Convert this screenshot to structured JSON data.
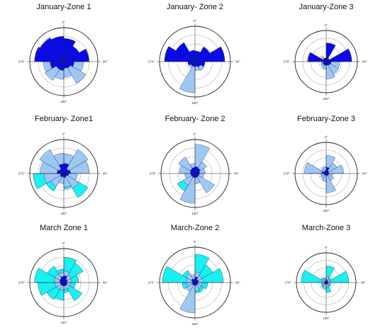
{
  "colors": {
    "dark": "#0a0ae6",
    "light": "#9ec8f2",
    "cyan": "#19f0f0",
    "stroke": "#1a1a6a",
    "ring": "#777777",
    "axis": "#222222"
  },
  "direction_labels": [
    "0°",
    "90°",
    "180°",
    "270°"
  ],
  "chart_data": [
    {
      "type": "polar-rose",
      "title": "January-Zone 1",
      "sectors": 12,
      "rmax": 1.0,
      "series": [
        {
          "color_key": "light",
          "values": [
            0.68,
            0.52,
            0.68,
            0.58,
            0.74,
            0.46,
            0.52,
            0.64,
            0.6,
            0.8,
            0.82,
            0.74
          ]
        },
        {
          "color_key": "dark",
          "values": [
            0.68,
            0.52,
            0.74,
            0.3,
            0.22,
            0.2,
            0.26,
            0.26,
            0.4,
            0.86,
            0.8,
            0.74
          ]
        }
      ]
    },
    {
      "type": "polar-rose",
      "title": "January- Zone 2",
      "sectors": 12,
      "rmax": 1.0,
      "series": [
        {
          "color_key": "light",
          "values": [
            0.3,
            0.3,
            0.36,
            0.28,
            0.3,
            0.26,
            0.88,
            0.2,
            0.2,
            0.46,
            0.2,
            0.24
          ]
        },
        {
          "color_key": "dark",
          "values": [
            0.3,
            0.48,
            0.84,
            0.28,
            0.18,
            0.14,
            0.14,
            0.14,
            0.2,
            0.86,
            0.62,
            0.32
          ]
        }
      ]
    },
    {
      "type": "polar-rose",
      "title": "January-Zone 3",
      "sectors": 12,
      "rmax": 1.0,
      "series": [
        {
          "color_key": "light",
          "values": [
            0.12,
            0.12,
            0.4,
            0.44,
            0.46,
            0.56,
            0.24,
            0.2,
            0.16,
            0.6,
            0.2,
            0.12
          ]
        },
        {
          "color_key": "dark",
          "values": [
            0.6,
            0.12,
            0.82,
            0.16,
            0.14,
            0.12,
            0.12,
            0.12,
            0.1,
            0.58,
            0.12,
            0.12
          ]
        }
      ]
    },
    {
      "type": "polar-rose",
      "title": "February- Zone1",
      "sectors": 12,
      "rmax": 1.0,
      "series": [
        {
          "color_key": "cyan",
          "values": [
            0.1,
            0.1,
            0.1,
            0.3,
            0.82,
            0.46,
            0.1,
            0.6,
            0.9,
            0.3,
            0.1,
            0.1
          ]
        },
        {
          "color_key": "light",
          "values": [
            0.58,
            0.82,
            0.74,
            0.4,
            0.5,
            0.4,
            0.3,
            0.44,
            0.58,
            0.7,
            0.82,
            0.6
          ]
        },
        {
          "color_key": "dark",
          "values": [
            0.3,
            0.16,
            0.2,
            0.14,
            0.1,
            0.12,
            0.1,
            0.12,
            0.1,
            0.2,
            0.16,
            0.28
          ]
        }
      ]
    },
    {
      "type": "polar-rose",
      "title": "February- Zone 2",
      "sectors": 12,
      "rmax": 1.0,
      "series": [
        {
          "color_key": "cyan",
          "values": [
            0.1,
            0.1,
            0.1,
            0.1,
            0.1,
            0.3,
            0.84,
            0.6,
            0.1,
            0.1,
            0.1,
            0.1
          ]
        },
        {
          "color_key": "light",
          "values": [
            0.86,
            0.4,
            0.3,
            0.26,
            0.66,
            0.3,
            0.88,
            0.4,
            0.3,
            0.46,
            0.56,
            0.3
          ]
        },
        {
          "color_key": "dark",
          "values": [
            0.2,
            0.18,
            0.14,
            0.12,
            0.12,
            0.12,
            0.12,
            0.12,
            0.12,
            0.14,
            0.16,
            0.18
          ]
        }
      ]
    },
    {
      "type": "polar-rose",
      "title": "February-Zone 3",
      "sectors": 12,
      "rmax": 1.0,
      "series": [
        {
          "color_key": "cyan",
          "values": [
            0.1,
            0.1,
            0.1,
            0.1,
            0.1,
            0.4,
            0.1,
            0.1,
            0.1,
            0.68,
            0.1,
            0.1
          ]
        },
        {
          "color_key": "light",
          "values": [
            0.58,
            0.4,
            0.56,
            0.2,
            0.28,
            0.62,
            0.26,
            0.2,
            0.18,
            0.7,
            0.2,
            0.22
          ]
        },
        {
          "color_key": "dark",
          "values": [
            0.2,
            0.1,
            0.08,
            0.08,
            0.08,
            0.06,
            0.06,
            0.06,
            0.06,
            0.14,
            0.08,
            0.1
          ]
        }
      ]
    },
    {
      "type": "polar-rose",
      "title": "March Zone 1",
      "sectors": 12,
      "rmax": 1.0,
      "series": [
        {
          "color_key": "cyan",
          "values": [
            0.74,
            0.66,
            0.44,
            0.34,
            0.62,
            0.3,
            0.52,
            0.58,
            0.76,
            0.86,
            0.56,
            0.4
          ]
        },
        {
          "color_key": "light",
          "values": [
            0.34,
            0.26,
            0.22,
            0.2,
            0.22,
            0.2,
            0.22,
            0.24,
            0.26,
            0.28,
            0.3,
            0.3
          ]
        },
        {
          "color_key": "dark",
          "values": [
            0.2,
            0.12,
            0.1,
            0.1,
            0.1,
            0.1,
            0.1,
            0.1,
            0.1,
            0.12,
            0.14,
            0.18
          ]
        }
      ]
    },
    {
      "type": "polar-rose",
      "title": "March-Zone 2",
      "sectors": 12,
      "rmax": 1.0,
      "series": [
        {
          "color_key": "cyan",
          "values": [
            0.8,
            0.58,
            0.8,
            0.36,
            0.3,
            0.3,
            0.32,
            0.28,
            0.36,
            0.92,
            0.4,
            0.1
          ]
        },
        {
          "color_key": "light",
          "values": [
            0.3,
            0.22,
            0.24,
            0.2,
            0.2,
            0.24,
            0.86,
            0.3,
            0.24,
            0.24,
            0.3,
            0.22
          ]
        },
        {
          "color_key": "dark",
          "values": [
            0.16,
            0.1,
            0.1,
            0.08,
            0.08,
            0.08,
            0.08,
            0.08,
            0.08,
            0.08,
            0.12,
            0.1
          ]
        }
      ]
    },
    {
      "type": "polar-rose",
      "title": "March-Zone 3",
      "sectors": 12,
      "rmax": 1.0,
      "series": [
        {
          "color_key": "cyan",
          "values": [
            0.56,
            0.2,
            0.76,
            0.16,
            0.18,
            0.34,
            0.18,
            0.2,
            0.16,
            0.84,
            0.2,
            0.16
          ]
        },
        {
          "color_key": "light",
          "values": [
            0.2,
            0.14,
            0.16,
            0.1,
            0.12,
            0.16,
            0.22,
            0.14,
            0.12,
            0.16,
            0.14,
            0.14
          ]
        },
        {
          "color_key": "dark",
          "values": [
            0.1,
            0.06,
            0.06,
            0.06,
            0.06,
            0.06,
            0.06,
            0.06,
            0.06,
            0.06,
            0.06,
            0.06
          ]
        }
      ]
    }
  ]
}
